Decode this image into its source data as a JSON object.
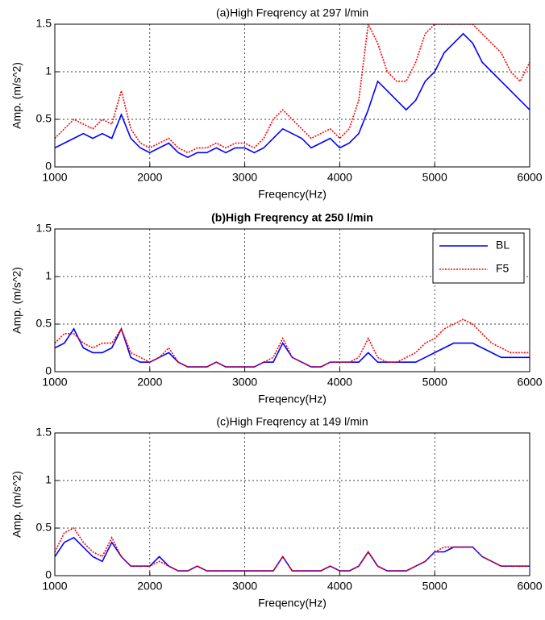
{
  "chart_data": [
    {
      "type": "line",
      "title": "(a)High Freqrency at 297 l/min",
      "xlabel": "Freqency(Hz)",
      "ylabel": "Amp. (m/s^2)",
      "x": [
        1000,
        1100,
        1200,
        1300,
        1400,
        1500,
        1600,
        1700,
        1800,
        1900,
        2000,
        2100,
        2200,
        2300,
        2400,
        2500,
        2600,
        2700,
        2800,
        2900,
        3000,
        3100,
        3200,
        3300,
        3400,
        3500,
        3600,
        3700,
        3800,
        3900,
        4000,
        4100,
        4200,
        4300,
        4400,
        4500,
        4600,
        4700,
        4800,
        4900,
        5000,
        5100,
        5200,
        5300,
        5400,
        5500,
        5600,
        5700,
        5800,
        5900,
        6000
      ],
      "series": [
        {
          "name": "BL",
          "color": "#0000ff",
          "style": "solid",
          "values": [
            0.2,
            0.25,
            0.3,
            0.35,
            0.3,
            0.35,
            0.3,
            0.55,
            0.3,
            0.2,
            0.15,
            0.2,
            0.25,
            0.15,
            0.1,
            0.15,
            0.15,
            0.2,
            0.15,
            0.2,
            0.2,
            0.15,
            0.2,
            0.3,
            0.4,
            0.35,
            0.3,
            0.2,
            0.25,
            0.3,
            0.2,
            0.25,
            0.35,
            0.6,
            0.9,
            0.8,
            0.7,
            0.6,
            0.7,
            0.9,
            1.0,
            1.2,
            1.3,
            1.4,
            1.3,
            1.1,
            1.0,
            0.9,
            0.8,
            0.7,
            0.6
          ]
        },
        {
          "name": "F5",
          "color": "#ff0000",
          "style": "dotted",
          "values": [
            0.3,
            0.4,
            0.5,
            0.45,
            0.4,
            0.5,
            0.45,
            0.8,
            0.4,
            0.25,
            0.2,
            0.25,
            0.3,
            0.2,
            0.15,
            0.2,
            0.2,
            0.25,
            0.2,
            0.25,
            0.25,
            0.2,
            0.3,
            0.5,
            0.6,
            0.5,
            0.4,
            0.3,
            0.35,
            0.4,
            0.3,
            0.4,
            0.7,
            1.5,
            1.3,
            1.0,
            0.9,
            0.9,
            1.1,
            1.4,
            1.5,
            1.5,
            1.5,
            1.5,
            1.5,
            1.4,
            1.3,
            1.2,
            1.0,
            0.9,
            1.1
          ]
        }
      ],
      "xlim": [
        1000,
        6000
      ],
      "xticks": [
        1000,
        2000,
        3000,
        4000,
        5000,
        6000
      ],
      "ylim": [
        0,
        1.5
      ],
      "yticks": [
        0,
        0.5,
        1,
        1.5
      ],
      "grid": true
    },
    {
      "type": "line",
      "title": "(b)High Freqrency at 250 l/min",
      "title_color": "#0000ff",
      "title_bold": true,
      "xlabel": "Freqency(Hz)",
      "ylabel": "Amp. (m/s^2)",
      "x": [
        1000,
        1100,
        1200,
        1300,
        1400,
        1500,
        1600,
        1700,
        1800,
        1900,
        2000,
        2100,
        2200,
        2300,
        2400,
        2500,
        2600,
        2700,
        2800,
        2900,
        3000,
        3100,
        3200,
        3300,
        3400,
        3500,
        3600,
        3700,
        3800,
        3900,
        4000,
        4100,
        4200,
        4300,
        4400,
        4500,
        4600,
        4700,
        4800,
        4900,
        5000,
        5100,
        5200,
        5300,
        5400,
        5500,
        5600,
        5700,
        5800,
        5900,
        6000
      ],
      "series": [
        {
          "name": "BL",
          "color": "#0000ff",
          "style": "solid",
          "values": [
            0.25,
            0.3,
            0.45,
            0.25,
            0.2,
            0.2,
            0.25,
            0.45,
            0.15,
            0.1,
            0.1,
            0.15,
            0.2,
            0.1,
            0.05,
            0.05,
            0.05,
            0.1,
            0.05,
            0.05,
            0.05,
            0.05,
            0.1,
            0.1,
            0.3,
            0.15,
            0.1,
            0.05,
            0.05,
            0.1,
            0.1,
            0.1,
            0.1,
            0.2,
            0.1,
            0.1,
            0.1,
            0.1,
            0.1,
            0.15,
            0.2,
            0.25,
            0.3,
            0.3,
            0.3,
            0.25,
            0.2,
            0.15,
            0.15,
            0.15,
            0.15
          ]
        },
        {
          "name": "F5",
          "color": "#ff0000",
          "style": "dotted",
          "values": [
            0.3,
            0.4,
            0.4,
            0.3,
            0.25,
            0.3,
            0.3,
            0.45,
            0.2,
            0.15,
            0.1,
            0.15,
            0.25,
            0.1,
            0.05,
            0.05,
            0.05,
            0.1,
            0.05,
            0.05,
            0.05,
            0.05,
            0.1,
            0.15,
            0.35,
            0.15,
            0.1,
            0.05,
            0.05,
            0.1,
            0.1,
            0.1,
            0.15,
            0.35,
            0.15,
            0.1,
            0.1,
            0.15,
            0.2,
            0.3,
            0.35,
            0.45,
            0.5,
            0.55,
            0.5,
            0.4,
            0.3,
            0.25,
            0.2,
            0.2,
            0.2
          ]
        }
      ],
      "xlim": [
        1000,
        6000
      ],
      "xticks": [
        1000,
        2000,
        3000,
        4000,
        5000,
        6000
      ],
      "ylim": [
        0,
        1.5
      ],
      "yticks": [
        0,
        0.5,
        1,
        1.5
      ],
      "grid": true,
      "legend": "upper right"
    },
    {
      "type": "line",
      "title": "(c)High Freqrency at 149 l/min",
      "xlabel": "Freqency(Hz)",
      "ylabel": "Amp. (m/s^2)",
      "x": [
        1000,
        1100,
        1200,
        1300,
        1400,
        1500,
        1600,
        1700,
        1800,
        1900,
        2000,
        2100,
        2200,
        2300,
        2400,
        2500,
        2600,
        2700,
        2800,
        2900,
        3000,
        3100,
        3200,
        3300,
        3400,
        3500,
        3600,
        3700,
        3800,
        3900,
        4000,
        4100,
        4200,
        4300,
        4400,
        4500,
        4600,
        4700,
        4800,
        4900,
        5000,
        5100,
        5200,
        5300,
        5400,
        5500,
        5600,
        5700,
        5800,
        5900,
        6000
      ],
      "series": [
        {
          "name": "BL",
          "color": "#0000ff",
          "style": "solid",
          "values": [
            0.2,
            0.35,
            0.4,
            0.3,
            0.2,
            0.15,
            0.35,
            0.2,
            0.1,
            0.1,
            0.1,
            0.2,
            0.1,
            0.05,
            0.05,
            0.1,
            0.05,
            0.05,
            0.05,
            0.05,
            0.05,
            0.05,
            0.05,
            0.05,
            0.2,
            0.05,
            0.05,
            0.05,
            0.05,
            0.1,
            0.05,
            0.05,
            0.1,
            0.25,
            0.1,
            0.05,
            0.05,
            0.05,
            0.1,
            0.15,
            0.25,
            0.25,
            0.3,
            0.3,
            0.3,
            0.2,
            0.15,
            0.1,
            0.1,
            0.1,
            0.1
          ]
        },
        {
          "name": "F5",
          "color": "#ff0000",
          "style": "dotted",
          "values": [
            0.25,
            0.45,
            0.5,
            0.35,
            0.25,
            0.2,
            0.4,
            0.2,
            0.1,
            0.1,
            0.1,
            0.15,
            0.1,
            0.05,
            0.05,
            0.1,
            0.05,
            0.05,
            0.05,
            0.05,
            0.05,
            0.05,
            0.05,
            0.05,
            0.2,
            0.05,
            0.05,
            0.05,
            0.05,
            0.1,
            0.05,
            0.05,
            0.1,
            0.25,
            0.1,
            0.05,
            0.05,
            0.05,
            0.1,
            0.15,
            0.25,
            0.3,
            0.3,
            0.3,
            0.3,
            0.2,
            0.15,
            0.1,
            0.1,
            0.1,
            0.1
          ]
        }
      ],
      "xlim": [
        1000,
        6000
      ],
      "xticks": [
        1000,
        2000,
        3000,
        4000,
        5000,
        6000
      ],
      "ylim": [
        0,
        1.5
      ],
      "yticks": [
        0,
        0.5,
        1,
        1.5
      ],
      "grid": true
    }
  ]
}
